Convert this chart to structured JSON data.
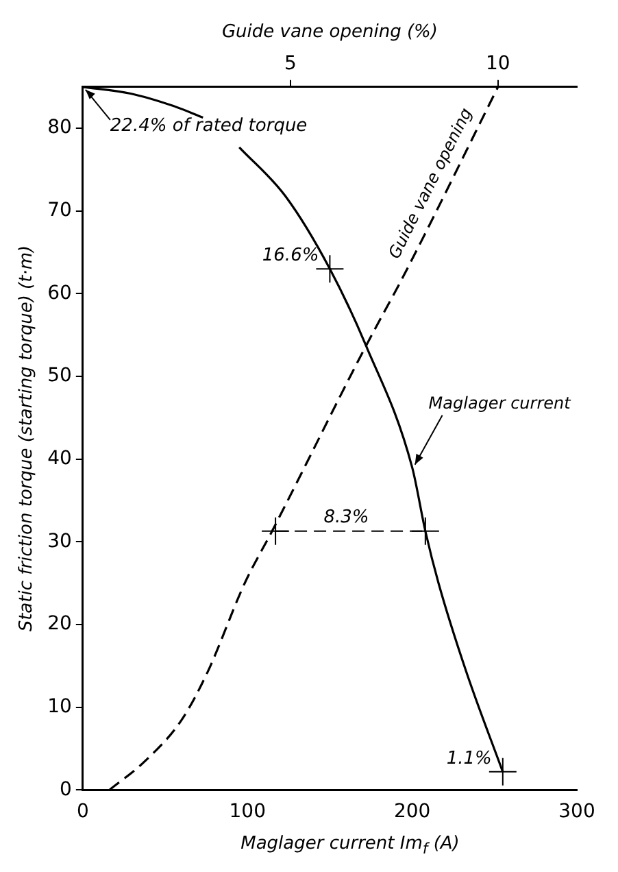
{
  "chart_data": {
    "type": "line",
    "xlabel": "Maglager current Im$_{f}$ (A)",
    "ylabel": "Static friction torque (starting torque) (t·m)",
    "x2label": "Guide vane opening (%)",
    "xlim": [
      0,
      300
    ],
    "xticks": [
      0,
      100,
      200,
      300
    ],
    "x2lim": [
      0,
      11.9
    ],
    "x2ticks": [
      5,
      10
    ],
    "ylim": [
      0,
      85
    ],
    "yticks": [
      0,
      10,
      20,
      30,
      40,
      50,
      60,
      70,
      80
    ],
    "grid": false,
    "legend": false,
    "series": [
      {
        "name": "Maglager current",
        "color": "#000000",
        "line_style": "solid",
        "marker": "none",
        "x": [
          0,
          29,
          55,
          73,
          84,
          95,
          123,
          150,
          172,
          200,
          208,
          216,
          233,
          255
        ],
        "values": [
          85,
          84.2,
          82.7,
          81.3,
          null,
          77.7,
          71.8,
          63,
          53.7,
          39,
          31.3,
          25,
          14.2,
          2.2
        ]
      },
      {
        "name": "Guide vane opening",
        "color": "#000000",
        "axis": "x2",
        "line_style": "dashed",
        "marker": "none",
        "x": [
          0.64,
          1.5,
          2.37,
          3.0,
          3.9,
          4.58,
          6.8,
          7.72,
          10
        ],
        "values": [
          0,
          3.5,
          8.4,
          14.2,
          25,
          31.5,
          53.5,
          62.1,
          85
        ]
      },
      {
        "color": "#000000",
        "line_style": "dashed",
        "marker": "none",
        "x": [
          117,
          208
        ],
        "values": [
          31.3,
          31.3
        ]
      },
      {
        "color": "#000000",
        "type": "scatter",
        "marker": "cross",
        "x": [
          150,
          117,
          208,
          255
        ],
        "values": [
          63,
          31.3,
          31.3,
          2.2
        ]
      }
    ],
    "annotations": [
      {
        "text": "22.4% of rated torque",
        "x": 0,
        "y": 85
      },
      {
        "text": "16.6%",
        "x": 150,
        "y": 63
      },
      {
        "text": "8.3%",
        "x": 160,
        "y": 31.3
      },
      {
        "text": "1.1%",
        "x": 255,
        "y": 2.2
      }
    ]
  }
}
